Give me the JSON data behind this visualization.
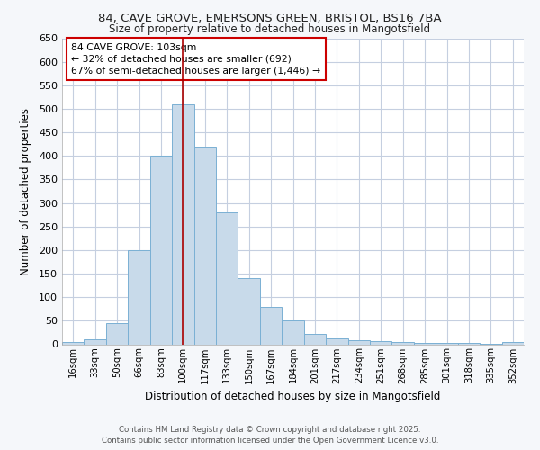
{
  "title_line1": "84, CAVE GROVE, EMERSONS GREEN, BRISTOL, BS16 7BA",
  "title_line2": "Size of property relative to detached houses in Mangotsfield",
  "xlabel": "Distribution of detached houses by size in Mangotsfield",
  "ylabel": "Number of detached properties",
  "categories": [
    "16sqm",
    "33sqm",
    "50sqm",
    "66sqm",
    "83sqm",
    "100sqm",
    "117sqm",
    "133sqm",
    "150sqm",
    "167sqm",
    "184sqm",
    "201sqm",
    "217sqm",
    "234sqm",
    "251sqm",
    "268sqm",
    "285sqm",
    "301sqm",
    "318sqm",
    "335sqm",
    "352sqm"
  ],
  "values": [
    5,
    10,
    45,
    200,
    400,
    510,
    420,
    280,
    140,
    80,
    50,
    22,
    13,
    9,
    7,
    5,
    3,
    3,
    2,
    1,
    4
  ],
  "bar_color": "#c8daea",
  "bar_edge_color": "#7ab0d4",
  "property_bin_index": 5,
  "vline_color": "#aa0000",
  "annotation_text": "84 CAVE GROVE: 103sqm\n← 32% of detached houses are smaller (692)\n67% of semi-detached houses are larger (1,446) →",
  "annotation_box_color": "#ffffff",
  "annotation_box_edge_color": "#cc0000",
  "ylim": [
    0,
    650
  ],
  "yticks": [
    0,
    50,
    100,
    150,
    200,
    250,
    300,
    350,
    400,
    450,
    500,
    550,
    600,
    650
  ],
  "footnote": "Contains HM Land Registry data © Crown copyright and database right 2025.\nContains public sector information licensed under the Open Government Licence v3.0.",
  "bg_color": "#f5f7fa",
  "plot_bg_color": "#ffffff",
  "grid_color": "#c5cfe0"
}
